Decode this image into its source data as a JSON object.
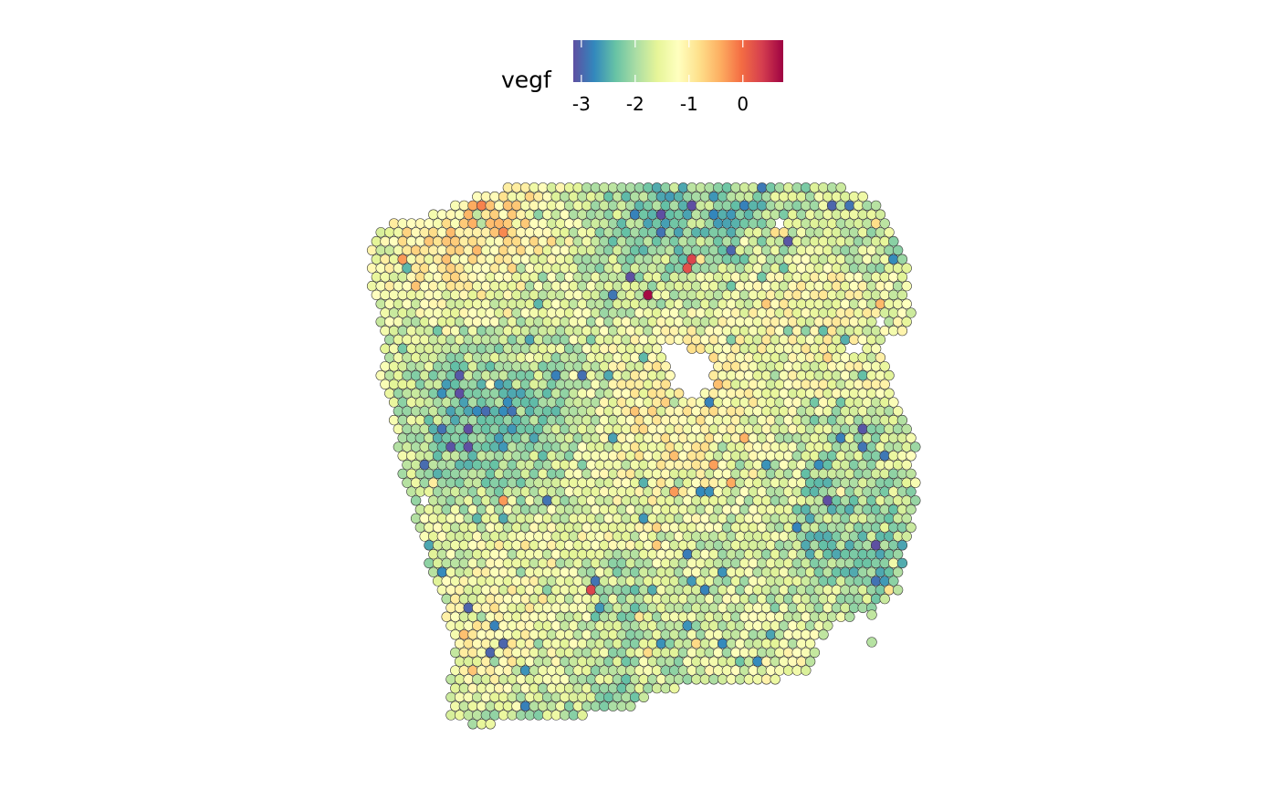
{
  "chart_data": {
    "type": "scatter",
    "title": "",
    "xlabel": "",
    "ylabel": "",
    "grid": false,
    "legend": {
      "title": "vegf",
      "placement": "top",
      "kind": "colorbar",
      "palette": [
        "#5E4FA2",
        "#3288BD",
        "#66C2A5",
        "#ABDDA4",
        "#E6F598",
        "#FFFFBF",
        "#FEE08B",
        "#FDAE61",
        "#F46D43",
        "#D53E4F",
        "#9E0142"
      ],
      "range": [
        -3.15,
        0.75
      ],
      "ticks": [
        {
          "value": -3,
          "label": "-3"
        },
        {
          "value": -2,
          "label": "-2"
        },
        {
          "value": -1,
          "label": "-1"
        },
        {
          "value": 0,
          "label": "0"
        }
      ]
    },
    "series": [
      {
        "value_field": "vegf",
        "spot_outline": "#333333",
        "distribution": {
          "typical_range": [
            -2.2,
            -1.0
          ],
          "mode": -1.6
        },
        "notable_spots": [
          {
            "x": 712,
            "y": 322,
            "vegf": 0.7
          },
          {
            "x": 760,
            "y": 288,
            "vegf": 0.3
          },
          {
            "x": 751,
            "y": 293,
            "vegf": 0.2
          },
          {
            "x": 647,
            "y": 647,
            "vegf": 0.3
          },
          {
            "x": 548,
            "y": 250,
            "vegf": -0.2
          },
          {
            "x": 443,
            "y": 285,
            "vegf": -0.3
          },
          {
            "x": 549,
            "y": 550,
            "vegf": -0.3
          },
          {
            "x": 743,
            "y": 540,
            "vegf": -0.3
          },
          {
            "x": 760,
            "y": 200,
            "vegf": -3.1
          },
          {
            "x": 866,
            "y": 263,
            "vegf": -3.1
          },
          {
            "x": 913,
            "y": 229,
            "vegf": -3.0
          },
          {
            "x": 551,
            "y": 706,
            "vegf": -3.0
          },
          {
            "x": 512,
            "y": 667,
            "vegf": -3.0
          },
          {
            "x": 541,
            "y": 720,
            "vegf": -3.0
          },
          {
            "x": 598,
            "y": 545,
            "vegf": -2.9
          },
          {
            "x": 657,
            "y": 638,
            "vegf": -2.9
          },
          {
            "x": 933,
            "y": 229,
            "vegf": -2.9
          },
          {
            "x": 781,
            "y": 443,
            "vegf": -2.8
          },
          {
            "x": 692,
            "y": 236,
            "vegf": -2.8
          },
          {
            "x": 541,
            "y": 682,
            "vegf": -2.8
          }
        ]
      }
    ]
  }
}
